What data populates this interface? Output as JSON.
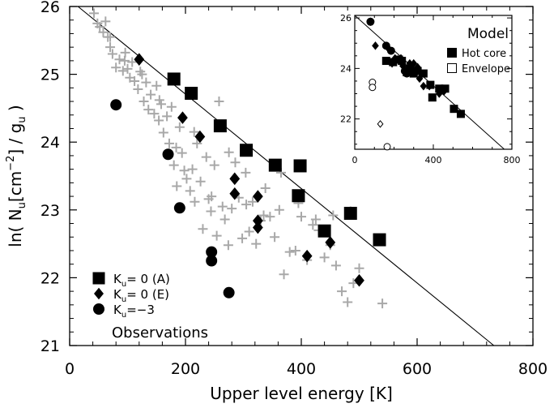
{
  "chart_data": [
    {
      "type": "scatter",
      "xlabel": "Upper level energy [K]",
      "ylabel_prefix": "ln( N",
      "ylabel_sub1": "u",
      "ylabel_mid": "[cm",
      "ylabel_sup": "−2",
      "ylabel_mid2": "] / g",
      "ylabel_sub2": "u",
      "ylabel_suffix": " )",
      "xlim": [
        0,
        800
      ],
      "ylim": [
        21,
        26
      ],
      "xticks": [
        "0",
        "200",
        "400",
        "600",
        "800"
      ],
      "yticks": [
        "21",
        "22",
        "23",
        "24",
        "25",
        "26"
      ],
      "annotation": "Observations",
      "legend": {
        "position": "bottom-left",
        "items": [
          {
            "marker": "square",
            "text_a": "K",
            "text_sub": "u",
            "text_b": "= 0 (A)"
          },
          {
            "marker": "diamond",
            "text_a": "K",
            "text_sub": "u",
            "text_b": "= 0 (E)"
          },
          {
            "marker": "circle",
            "text_a": "K",
            "text_sub": "u",
            "text_b": "=−3"
          }
        ]
      },
      "fit_line": {
        "x": [
          0,
          800
        ],
        "y": [
          26.1,
          20.53
        ]
      },
      "series": [
        {
          "marker": "square",
          "x": [
            180,
            210,
            260,
            305,
            355,
            398,
            395,
            440,
            485,
            535
          ],
          "y": [
            24.93,
            24.72,
            24.24,
            23.88,
            23.66,
            23.65,
            23.21,
            22.69,
            22.95,
            22.56
          ]
        },
        {
          "marker": "diamond",
          "x": [
            120,
            195,
            225,
            285,
            285,
            325,
            325,
            325,
            410,
            450,
            500
          ],
          "y": [
            25.22,
            24.36,
            24.08,
            23.46,
            23.24,
            23.2,
            22.84,
            22.74,
            22.32,
            22.52,
            21.96
          ]
        },
        {
          "marker": "circle",
          "x": [
            80,
            170,
            190,
            245,
            245,
            275
          ],
          "y": [
            24.55,
            23.82,
            23.03,
            22.38,
            22.25,
            21.78
          ]
        },
        {
          "marker": "plus",
          "color": "#a8a8a8",
          "x": [
            42,
            48,
            52,
            58,
            62,
            66,
            70,
            74,
            80,
            86,
            92,
            96,
            100,
            104,
            108,
            112,
            118,
            122,
            128,
            132,
            136,
            140,
            146,
            150,
            154,
            158,
            162,
            168,
            172,
            176,
            180,
            184,
            190,
            194,
            198,
            202,
            208,
            212,
            216,
            220,
            226,
            230,
            236,
            240,
            244,
            250,
            254,
            258,
            264,
            268,
            274,
            280,
            286,
            292,
            298,
            304,
            310,
            316,
            322,
            330,
            338,
            346,
            354,
            362,
            370,
            380,
            390,
            400,
            410,
            420,
            430,
            440,
            450,
            460,
            470,
            480,
            490,
            500,
            540,
            70,
            95,
            125,
            155,
            185,
            215,
            245,
            275,
            305,
            335,
            365,
            395,
            425,
            455,
            485
          ],
          "y": [
            25.9,
            25.75,
            25.7,
            25.62,
            25.78,
            25.55,
            25.4,
            25.3,
            25.1,
            25.22,
            25.05,
            25.32,
            25.08,
            24.95,
            25.18,
            24.9,
            24.78,
            25.04,
            24.6,
            24.88,
            24.48,
            24.7,
            24.42,
            24.83,
            24.32,
            24.56,
            24.14,
            24.38,
            23.98,
            24.52,
            23.66,
            23.92,
            24.22,
            23.84,
            23.58,
            23.46,
            23.28,
            23.6,
            23.12,
            23.98,
            23.42,
            22.72,
            23.78,
            23.16,
            22.98,
            23.66,
            22.62,
            24.6,
            23.05,
            22.86,
            22.48,
            23.02,
            23.7,
            23.18,
            22.58,
            23.55,
            22.68,
            23.12,
            22.5,
            22.84,
            23.32,
            22.9,
            22.6,
            23.0,
            22.05,
            22.38,
            22.4,
            22.9,
            22.26,
            22.78,
            22.7,
            22.3,
            22.48,
            22.18,
            21.8,
            21.64,
            21.92,
            22.14,
            21.62,
            25.55,
            25.2,
            25.0,
            24.62,
            23.35,
            24.15,
            23.2,
            23.85,
            23.08,
            22.92,
            23.55,
            23.1,
            22.86,
            22.92,
            22.98
          ]
        }
      ]
    },
    {
      "type": "scatter",
      "inset": true,
      "title": "Model",
      "xlim": [
        0,
        800
      ],
      "ylim": [
        20.8,
        26.1
      ],
      "xticks": [
        "0",
        "400",
        "800"
      ],
      "yticks": [
        "22",
        "24",
        "26"
      ],
      "legend": {
        "position": "top-right",
        "items": [
          {
            "marker": "square-filled",
            "label": "Hot core"
          },
          {
            "marker": "square-open",
            "label": "Envelope"
          }
        ]
      },
      "fit_line": {
        "x": [
          0,
          800
        ],
        "y": [
          26.1,
          20.53
        ]
      },
      "series": [
        {
          "marker": "square-filled",
          "x": [
            160,
            195,
            225,
            240,
            265,
            280,
            300,
            320,
            350,
            385,
            395,
            430,
            460,
            505,
            540
          ],
          "y": [
            24.3,
            24.25,
            24.35,
            24.3,
            23.85,
            24.0,
            23.8,
            23.9,
            23.8,
            23.35,
            22.85,
            23.2,
            23.2,
            22.4,
            22.2
          ]
        },
        {
          "marker": "diamond-filled",
          "x": [
            80,
            105,
            165,
            190,
            205,
            235,
            245,
            270,
            280,
            290,
            300,
            310,
            320,
            330,
            350,
            380,
            430,
            455
          ],
          "y": [
            25.85,
            24.9,
            24.85,
            24.2,
            24.4,
            24.4,
            24.1,
            24.0,
            24.2,
            24.0,
            24.2,
            23.9,
            24.05,
            23.6,
            23.3,
            23.3,
            23.0,
            23.1
          ]
        },
        {
          "marker": "circle-filled",
          "x": [
            80,
            160,
            185,
            215,
            235,
            255,
            265
          ],
          "y": [
            25.85,
            24.9,
            24.7,
            24.35,
            24.3,
            23.9,
            23.8
          ]
        },
        {
          "marker": "circle-open",
          "x": [
            90,
            90,
            165
          ],
          "y": [
            23.45,
            23.25,
            20.9
          ]
        },
        {
          "marker": "diamond-open",
          "x": [
            130
          ],
          "y": [
            21.8
          ]
        }
      ]
    }
  ]
}
